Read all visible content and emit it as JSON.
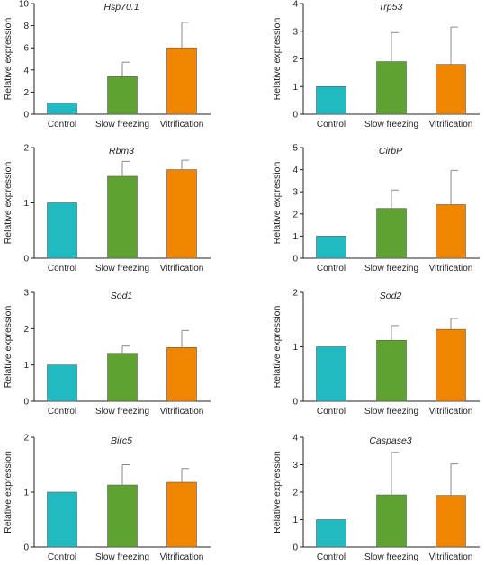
{
  "figure": {
    "colors": {
      "Control": "#21bac0",
      "Slow freezing": "#5ea232",
      "Vitrification": "#f08600",
      "axis": "#231f20",
      "errorbar": "#8a8a8a"
    }
  },
  "chart_data": [
    {
      "type": "bar",
      "title": "Hsp70.1",
      "ylabel": "Relative expression",
      "xlabel": "",
      "categories": [
        "Control",
        "Slow freezing",
        "Vitrification"
      ],
      "values": [
        1.0,
        3.4,
        6.0
      ],
      "errors": [
        0,
        1.3,
        2.3
      ],
      "ylim": [
        0,
        10
      ],
      "yticks": [
        0,
        2,
        4,
        6,
        8,
        10
      ],
      "grid": false
    },
    {
      "type": "bar",
      "title": "Trp53",
      "ylabel": "Relative expression",
      "xlabel": "",
      "categories": [
        "Control",
        "Slow freezing",
        "Vitrification"
      ],
      "values": [
        1.0,
        1.9,
        1.8
      ],
      "errors": [
        0,
        1.05,
        1.35
      ],
      "ylim": [
        0,
        4
      ],
      "yticks": [
        0,
        1,
        2,
        3,
        4
      ],
      "grid": false
    },
    {
      "type": "bar",
      "title": "Rbm3",
      "ylabel": "Relative expression",
      "xlabel": "",
      "categories": [
        "Control",
        "Slow freezing",
        "Vitrification"
      ],
      "values": [
        1.0,
        1.48,
        1.6
      ],
      "errors": [
        0,
        0.27,
        0.17
      ],
      "ylim": [
        0,
        2
      ],
      "yticks": [
        0,
        1,
        2
      ],
      "grid": false
    },
    {
      "type": "bar",
      "title": "CirbP",
      "ylabel": "Relative expression",
      "xlabel": "",
      "categories": [
        "Control",
        "Slow freezing",
        "Vitrification"
      ],
      "values": [
        1.0,
        2.25,
        2.42
      ],
      "errors": [
        0,
        0.83,
        1.55
      ],
      "ylim": [
        0,
        5
      ],
      "yticks": [
        0,
        1,
        2,
        3,
        4,
        5
      ],
      "grid": false
    },
    {
      "type": "bar",
      "title": "Sod1",
      "ylabel": "Relative expression",
      "xlabel": "",
      "categories": [
        "Control",
        "Slow freezing",
        "Vitrification"
      ],
      "values": [
        1.0,
        1.32,
        1.48
      ],
      "errors": [
        0,
        0.2,
        0.47
      ],
      "ylim": [
        0,
        3
      ],
      "yticks": [
        0,
        1,
        2,
        3
      ],
      "grid": false
    },
    {
      "type": "bar",
      "title": "Sod2",
      "ylabel": "Relative expression",
      "xlabel": "",
      "categories": [
        "Control",
        "Slow freezing",
        "Vitrification"
      ],
      "values": [
        1.0,
        1.12,
        1.32
      ],
      "errors": [
        0,
        0.27,
        0.2
      ],
      "ylim": [
        0,
        2
      ],
      "yticks": [
        0,
        1,
        2
      ],
      "grid": false
    },
    {
      "type": "bar",
      "title": "Birc5",
      "ylabel": "Relative expression",
      "xlabel": "",
      "categories": [
        "Control",
        "Slow freezing",
        "Vitrification"
      ],
      "values": [
        1.0,
        1.13,
        1.18
      ],
      "errors": [
        0,
        0.37,
        0.25
      ],
      "ylim": [
        0,
        2
      ],
      "yticks": [
        0,
        1,
        2
      ],
      "grid": false
    },
    {
      "type": "bar",
      "title": "Caspase3",
      "ylabel": "Relative expression",
      "xlabel": "",
      "categories": [
        "Control",
        "Slow freezing",
        "Vitrification"
      ],
      "values": [
        1.0,
        1.9,
        1.88
      ],
      "errors": [
        0,
        1.55,
        1.15
      ],
      "ylim": [
        0,
        4
      ],
      "yticks": [
        0,
        1,
        2,
        3,
        4
      ],
      "grid": false
    }
  ]
}
